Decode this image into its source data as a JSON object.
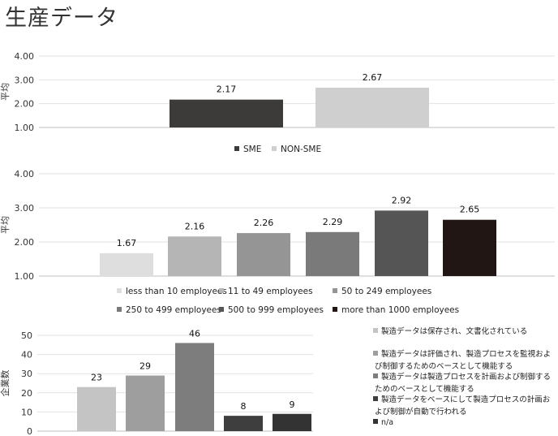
{
  "title": "生産データ",
  "chart_data": [
    {
      "type": "bar",
      "ylabel": "平均",
      "ylim": [
        1.0,
        4.0
      ],
      "yticks": [
        "1.00",
        "2.00",
        "3.00",
        "4.00"
      ],
      "categories": [
        "SME",
        "NON-SME"
      ],
      "values": [
        2.17,
        2.67
      ],
      "data_labels": [
        "2.17",
        "2.67"
      ],
      "colors": [
        "#3d3a3a",
        "#cfcfcf"
      ],
      "legend": [
        "SME",
        "NON-SME"
      ],
      "legend_position": "bottom",
      "grid": true
    },
    {
      "type": "bar",
      "ylabel": "平均",
      "ylim": [
        1.0,
        4.0
      ],
      "yticks": [
        "1.00",
        "2.00",
        "3.00",
        "4.00"
      ],
      "categories": [
        "less than 10 employees",
        "11 to 49 employees",
        "50 to 249 employees",
        "250 to 499 employees",
        "500 to 999 employees",
        "more than 1000 employees"
      ],
      "values": [
        1.67,
        2.16,
        2.26,
        2.29,
        2.92,
        2.65
      ],
      "data_labels": [
        "1.67",
        "2.16",
        "2.26",
        "2.29",
        "2.92",
        "2.65"
      ],
      "colors": [
        "#dedede",
        "#b5b5b5",
        "#959595",
        "#7a7a7a",
        "#555555",
        "#221614"
      ],
      "legend": [
        "less than 10 employees",
        "11 to 49 employees",
        "50 to 249 employees",
        "250 to 499 employees",
        "500 to 999 employees",
        "more than 1000 employees"
      ],
      "legend_position": "bottom",
      "grid": true
    },
    {
      "type": "bar",
      "ylabel": "企業数",
      "ylim": [
        0,
        50
      ],
      "yticks": [
        "0",
        "10",
        "20",
        "30",
        "40",
        "50"
      ],
      "categories": [
        "製造データは保存され、文書化されている",
        "製造データは評価され、製造プロセスを監視および制御するためのベースとして機能する",
        "製造データは製造プロセスを計画および制御するためのベースとして機能する",
        "製造データをベースにして製造プロセスの計画および制御が自動で行われる",
        "n/a"
      ],
      "values": [
        23,
        29,
        46,
        8,
        9
      ],
      "data_labels": [
        "23",
        "29",
        "46",
        "8",
        "9"
      ],
      "colors": [
        "#c4c4c4",
        "#9e9e9e",
        "#7d7d7d",
        "#3e3e3e",
        "#333333"
      ],
      "legend": [
        [
          "製造データは保存され、文書化されている"
        ],
        [
          "製造データは評価され、製造プロセスを監視およ",
          "び制御するためのベースとして機能する"
        ],
        [
          "製造データは製造プロセスを計画および制御する",
          "ためのベースとして機能する"
        ],
        [
          "製造データをベースにして製造プロセスの計画お",
          "よび制御が自動で行われる"
        ],
        [
          "n/a"
        ]
      ],
      "legend_position": "right",
      "grid": true
    }
  ]
}
